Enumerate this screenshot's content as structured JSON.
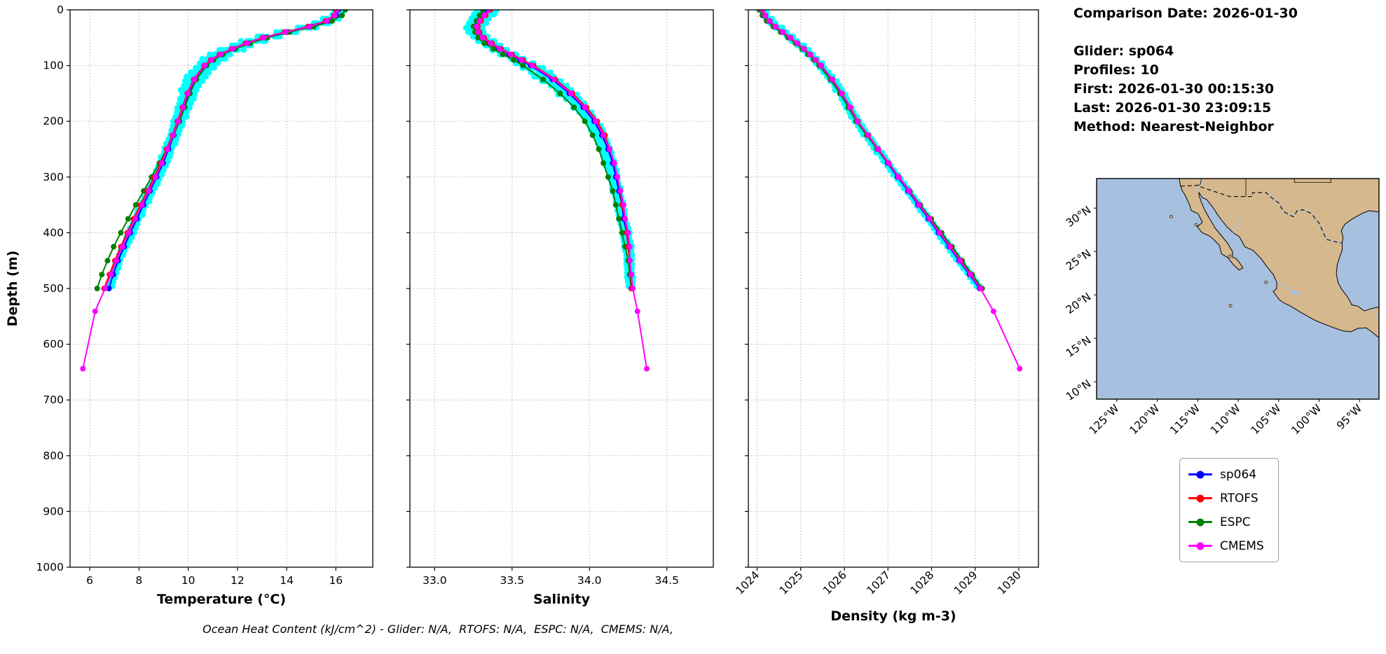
{
  "info": {
    "comparison_date": "Comparison Date: 2026-01-30",
    "glider": "Glider: sp064",
    "profiles": "Profiles: 10",
    "first": "First: 2026-01-30 00:15:30",
    "last": "Last: 2026-01-30 23:09:15",
    "method": "Method: Nearest-Neighbor"
  },
  "legend": {
    "items": [
      {
        "label": "sp064",
        "color": "#0000ff"
      },
      {
        "label": "RTOFS",
        "color": "#ff0000"
      },
      {
        "label": "ESPC",
        "color": "#008000"
      },
      {
        "label": "CMEMS",
        "color": "#ff00ff"
      }
    ]
  },
  "footer": {
    "text": "Ocean Heat Content (kJ/cm^2) - Glider: N/A,  RTOFS: N/A,  ESPC: N/A,  CMEMS: N/A,"
  },
  "map": {
    "lat_ticks": [
      {
        "v": 30,
        "label": "30°N"
      },
      {
        "v": 25,
        "label": "25°N"
      },
      {
        "v": 20,
        "label": "20°N"
      },
      {
        "v": 15,
        "label": "15°N"
      },
      {
        "v": 10,
        "label": "10°N"
      }
    ],
    "lon_ticks": [
      {
        "v": 125,
        "label": "125°W"
      },
      {
        "v": 120,
        "label": "120°W"
      },
      {
        "v": 115,
        "label": "115°W"
      },
      {
        "v": 110,
        "label": "110°W"
      },
      {
        "v": 105,
        "label": "105°W"
      },
      {
        "v": 100,
        "label": "100°W"
      },
      {
        "v": 95,
        "label": "95°W"
      }
    ],
    "colors": {
      "ocean": "#a8c0e0",
      "land": "#d6b88e",
      "water_features": "#9cc3ea"
    }
  },
  "chart_data": [
    {
      "type": "line",
      "xlabel": "Temperature (°C)",
      "ylabel": "Depth (m)",
      "xlim": [
        5.2,
        17.5
      ],
      "ylim": [
        0,
        1000
      ],
      "yaxis_inverted": true,
      "grid": true,
      "xtick_values": [
        6,
        8,
        10,
        12,
        14,
        16
      ],
      "xtick_labels": [
        "6",
        "8",
        "10",
        "12",
        "14",
        "16"
      ],
      "ytick_values": [
        0,
        100,
        200,
        300,
        400,
        500,
        600,
        700,
        800,
        900,
        1000
      ],
      "ytick_labels": [
        "0",
        "100",
        "200",
        "300",
        "400",
        "500",
        "600",
        "700",
        "800",
        "900",
        "1000"
      ],
      "depths": [
        0,
        10,
        20,
        30,
        40,
        50,
        60,
        70,
        80,
        90,
        100,
        125,
        150,
        175,
        200,
        225,
        250,
        275,
        300,
        325,
        350,
        375,
        400,
        425,
        450,
        475,
        500
      ],
      "series": [
        {
          "name": "sp064",
          "color": "#0000ff",
          "values": [
            16.1,
            16.02,
            15.7,
            15.0,
            14.05,
            13.15,
            12.45,
            11.85,
            11.35,
            10.98,
            10.7,
            10.28,
            10.02,
            9.82,
            9.62,
            9.42,
            9.2,
            8.98,
            8.72,
            8.45,
            8.18,
            7.92,
            7.65,
            7.4,
            7.15,
            6.95,
            6.78
          ]
        },
        {
          "name": "RTOFS",
          "color": "#ff0000",
          "values": [
            16.0,
            15.92,
            15.58,
            14.86,
            13.92,
            13.02,
            12.33,
            11.76,
            11.27,
            10.91,
            10.64,
            10.22,
            9.96,
            9.76,
            9.56,
            9.35,
            9.12,
            8.89,
            8.62,
            8.34,
            8.06,
            7.78,
            7.52,
            7.26,
            7.02,
            6.8,
            6.58
          ]
        },
        {
          "name": "ESPC",
          "color": "#008000",
          "values": [
            16.38,
            16.25,
            15.85,
            15.1,
            14.12,
            13.22,
            12.52,
            11.92,
            11.41,
            11.03,
            10.75,
            10.33,
            10.07,
            9.86,
            9.65,
            9.41,
            9.13,
            8.83,
            8.51,
            8.19,
            7.87,
            7.56,
            7.26,
            6.97,
            6.72,
            6.49,
            6.3
          ]
        },
        {
          "name": "CMEMS",
          "color": "#ff00ff",
          "depths": [
            0,
            10,
            20,
            30,
            40,
            50,
            60,
            70,
            80,
            90,
            100,
            125,
            150,
            175,
            200,
            225,
            250,
            275,
            300,
            325,
            350,
            375,
            400,
            425,
            450,
            475,
            500,
            541,
            644
          ],
          "values": [
            16.05,
            15.96,
            15.63,
            14.93,
            13.97,
            13.07,
            12.38,
            11.8,
            11.31,
            10.94,
            10.67,
            10.25,
            9.99,
            9.79,
            9.59,
            9.38,
            9.16,
            8.93,
            8.67,
            8.4,
            8.12,
            7.85,
            7.58,
            7.33,
            7.08,
            6.86,
            6.62,
            6.22,
            5.72
          ]
        }
      ],
      "scatter": {
        "name": "glider-profiles",
        "color": "#00ffff",
        "profiles": 10,
        "max_depth": 500,
        "spread": [
          [
            0,
            0.18
          ],
          [
            30,
            0.4
          ],
          [
            60,
            0.45
          ],
          [
            120,
            0.33
          ],
          [
            200,
            0.2
          ],
          [
            350,
            0.14
          ],
          [
            500,
            0.1
          ]
        ]
      }
    },
    {
      "type": "line",
      "xlabel": "Salinity",
      "ylabel": "",
      "xlim": [
        32.84,
        34.8
      ],
      "ylim": [
        0,
        1000
      ],
      "yaxis_inverted": true,
      "grid": true,
      "xtick_values": [
        33.0,
        33.5,
        34.0,
        34.5
      ],
      "xtick_labels": [
        "33.0",
        "33.5",
        "34.0",
        "34.5"
      ],
      "ytick_values": [
        0,
        100,
        200,
        300,
        400,
        500,
        600,
        700,
        800,
        900,
        1000
      ],
      "ytick_labels": [
        "0",
        "100",
        "200",
        "300",
        "400",
        "500",
        "600",
        "700",
        "800",
        "900",
        "1000"
      ],
      "depths": [
        0,
        10,
        20,
        30,
        40,
        50,
        60,
        70,
        80,
        90,
        100,
        125,
        150,
        175,
        200,
        225,
        250,
        275,
        300,
        325,
        350,
        375,
        400,
        425,
        450,
        475,
        500
      ],
      "series": [
        {
          "name": "sp064",
          "color": "#0000ff",
          "values": [
            33.34,
            33.31,
            33.28,
            33.26,
            33.27,
            33.3,
            33.35,
            33.41,
            33.48,
            33.55,
            33.62,
            33.76,
            33.87,
            33.96,
            34.03,
            34.08,
            34.12,
            34.15,
            34.17,
            34.19,
            34.21,
            34.22,
            34.24,
            34.25,
            34.26,
            34.26,
            34.27
          ]
        },
        {
          "name": "RTOFS",
          "color": "#ff0000",
          "values": [
            33.36,
            33.33,
            33.3,
            33.28,
            33.29,
            33.32,
            33.37,
            33.43,
            33.5,
            33.57,
            33.64,
            33.78,
            33.89,
            33.98,
            34.05,
            34.1,
            34.13,
            34.16,
            34.18,
            34.2,
            34.21,
            34.23,
            34.24,
            34.25,
            34.26,
            34.27,
            34.27
          ]
        },
        {
          "name": "ESPC",
          "color": "#008000",
          "values": [
            33.31,
            33.29,
            33.27,
            33.25,
            33.26,
            33.28,
            33.32,
            33.38,
            33.44,
            33.51,
            33.57,
            33.7,
            33.81,
            33.9,
            33.97,
            34.02,
            34.06,
            34.09,
            34.12,
            34.15,
            34.17,
            34.19,
            34.21,
            34.23,
            34.25,
            34.26,
            34.27
          ]
        },
        {
          "name": "CMEMS",
          "color": "#ff00ff",
          "depths": [
            0,
            10,
            20,
            30,
            40,
            50,
            60,
            70,
            80,
            90,
            100,
            125,
            150,
            175,
            200,
            225,
            250,
            275,
            300,
            325,
            350,
            375,
            400,
            425,
            450,
            475,
            500,
            541,
            644
          ],
          "values": [
            33.35,
            33.32,
            33.29,
            33.27,
            33.28,
            33.31,
            33.36,
            33.42,
            33.49,
            33.56,
            33.63,
            33.77,
            33.88,
            33.97,
            34.04,
            34.09,
            34.13,
            34.16,
            34.18,
            34.2,
            34.22,
            34.23,
            34.25,
            34.26,
            34.26,
            34.27,
            34.28,
            34.31,
            34.37
          ]
        }
      ],
      "scatter": {
        "name": "glider-profiles",
        "color": "#00ffff",
        "profiles": 10,
        "max_depth": 500,
        "spread": [
          [
            0,
            0.07
          ],
          [
            30,
            0.06
          ],
          [
            60,
            0.05
          ],
          [
            120,
            0.07
          ],
          [
            200,
            0.04
          ],
          [
            500,
            0.015
          ]
        ]
      }
    },
    {
      "type": "line",
      "xlabel": "Density (kg m-3)",
      "ylabel": "",
      "xlim": [
        1023.8,
        1030.45
      ],
      "ylim": [
        0,
        1000
      ],
      "yaxis_inverted": true,
      "grid": true,
      "xtick_values": [
        1024,
        1025,
        1026,
        1027,
        1028,
        1029,
        1030
      ],
      "xtick_labels": [
        "1024",
        "1025",
        "1026",
        "1027",
        "1028",
        "1029",
        "1030"
      ],
      "ytick_values": [
        0,
        100,
        200,
        300,
        400,
        500,
        600,
        700,
        800,
        900,
        1000
      ],
      "ytick_labels": [
        "0",
        "100",
        "200",
        "300",
        "400",
        "500",
        "600",
        "700",
        "800",
        "900",
        "1000"
      ],
      "depths": [
        0,
        10,
        20,
        30,
        40,
        50,
        60,
        70,
        80,
        90,
        100,
        125,
        150,
        175,
        200,
        225,
        250,
        275,
        300,
        325,
        350,
        375,
        400,
        425,
        450,
        475,
        500
      ],
      "series": [
        {
          "name": "sp064",
          "color": "#0000ff",
          "values": [
            1024.1,
            1024.16,
            1024.26,
            1024.4,
            1024.57,
            1024.74,
            1024.9,
            1025.05,
            1025.19,
            1025.32,
            1025.44,
            1025.7,
            1025.92,
            1026.11,
            1026.28,
            1026.52,
            1026.75,
            1026.99,
            1027.22,
            1027.46,
            1027.69,
            1027.93,
            1028.16,
            1028.4,
            1028.63,
            1028.87,
            1029.1
          ]
        },
        {
          "name": "RTOFS",
          "color": "#ff0000",
          "values": [
            1024.13,
            1024.19,
            1024.29,
            1024.43,
            1024.6,
            1024.77,
            1024.93,
            1025.08,
            1025.22,
            1025.35,
            1025.47,
            1025.73,
            1025.95,
            1026.14,
            1026.31,
            1026.55,
            1026.78,
            1027.02,
            1027.25,
            1027.49,
            1027.72,
            1027.96,
            1028.19,
            1028.43,
            1028.66,
            1028.9,
            1029.13
          ]
        },
        {
          "name": "ESPC",
          "color": "#008000",
          "values": [
            1024.05,
            1024.12,
            1024.22,
            1024.37,
            1024.54,
            1024.71,
            1024.88,
            1025.03,
            1025.17,
            1025.3,
            1025.42,
            1025.68,
            1025.9,
            1026.09,
            1026.27,
            1026.51,
            1026.75,
            1027.0,
            1027.25,
            1027.5,
            1027.74,
            1027.99,
            1028.23,
            1028.47,
            1028.7,
            1028.93,
            1029.16
          ]
        },
        {
          "name": "CMEMS",
          "color": "#ff00ff",
          "depths": [
            0,
            10,
            20,
            30,
            40,
            50,
            60,
            70,
            80,
            90,
            100,
            125,
            150,
            175,
            200,
            225,
            250,
            275,
            300,
            325,
            350,
            375,
            400,
            425,
            450,
            475,
            500,
            541,
            644
          ],
          "values": [
            1024.12,
            1024.18,
            1024.28,
            1024.42,
            1024.59,
            1024.76,
            1024.92,
            1025.07,
            1025.21,
            1025.34,
            1025.46,
            1025.72,
            1025.94,
            1026.13,
            1026.3,
            1026.54,
            1026.77,
            1027.01,
            1027.24,
            1027.48,
            1027.71,
            1027.95,
            1028.18,
            1028.42,
            1028.65,
            1028.89,
            1029.12,
            1029.42,
            1030.02
          ]
        }
      ],
      "scatter": {
        "name": "glider-profiles",
        "color": "#00ffff",
        "profiles": 10,
        "max_depth": 500,
        "spread": [
          [
            0,
            0.1
          ],
          [
            60,
            0.12
          ],
          [
            150,
            0.1
          ],
          [
            300,
            0.06
          ],
          [
            500,
            0.04
          ]
        ]
      }
    }
  ]
}
